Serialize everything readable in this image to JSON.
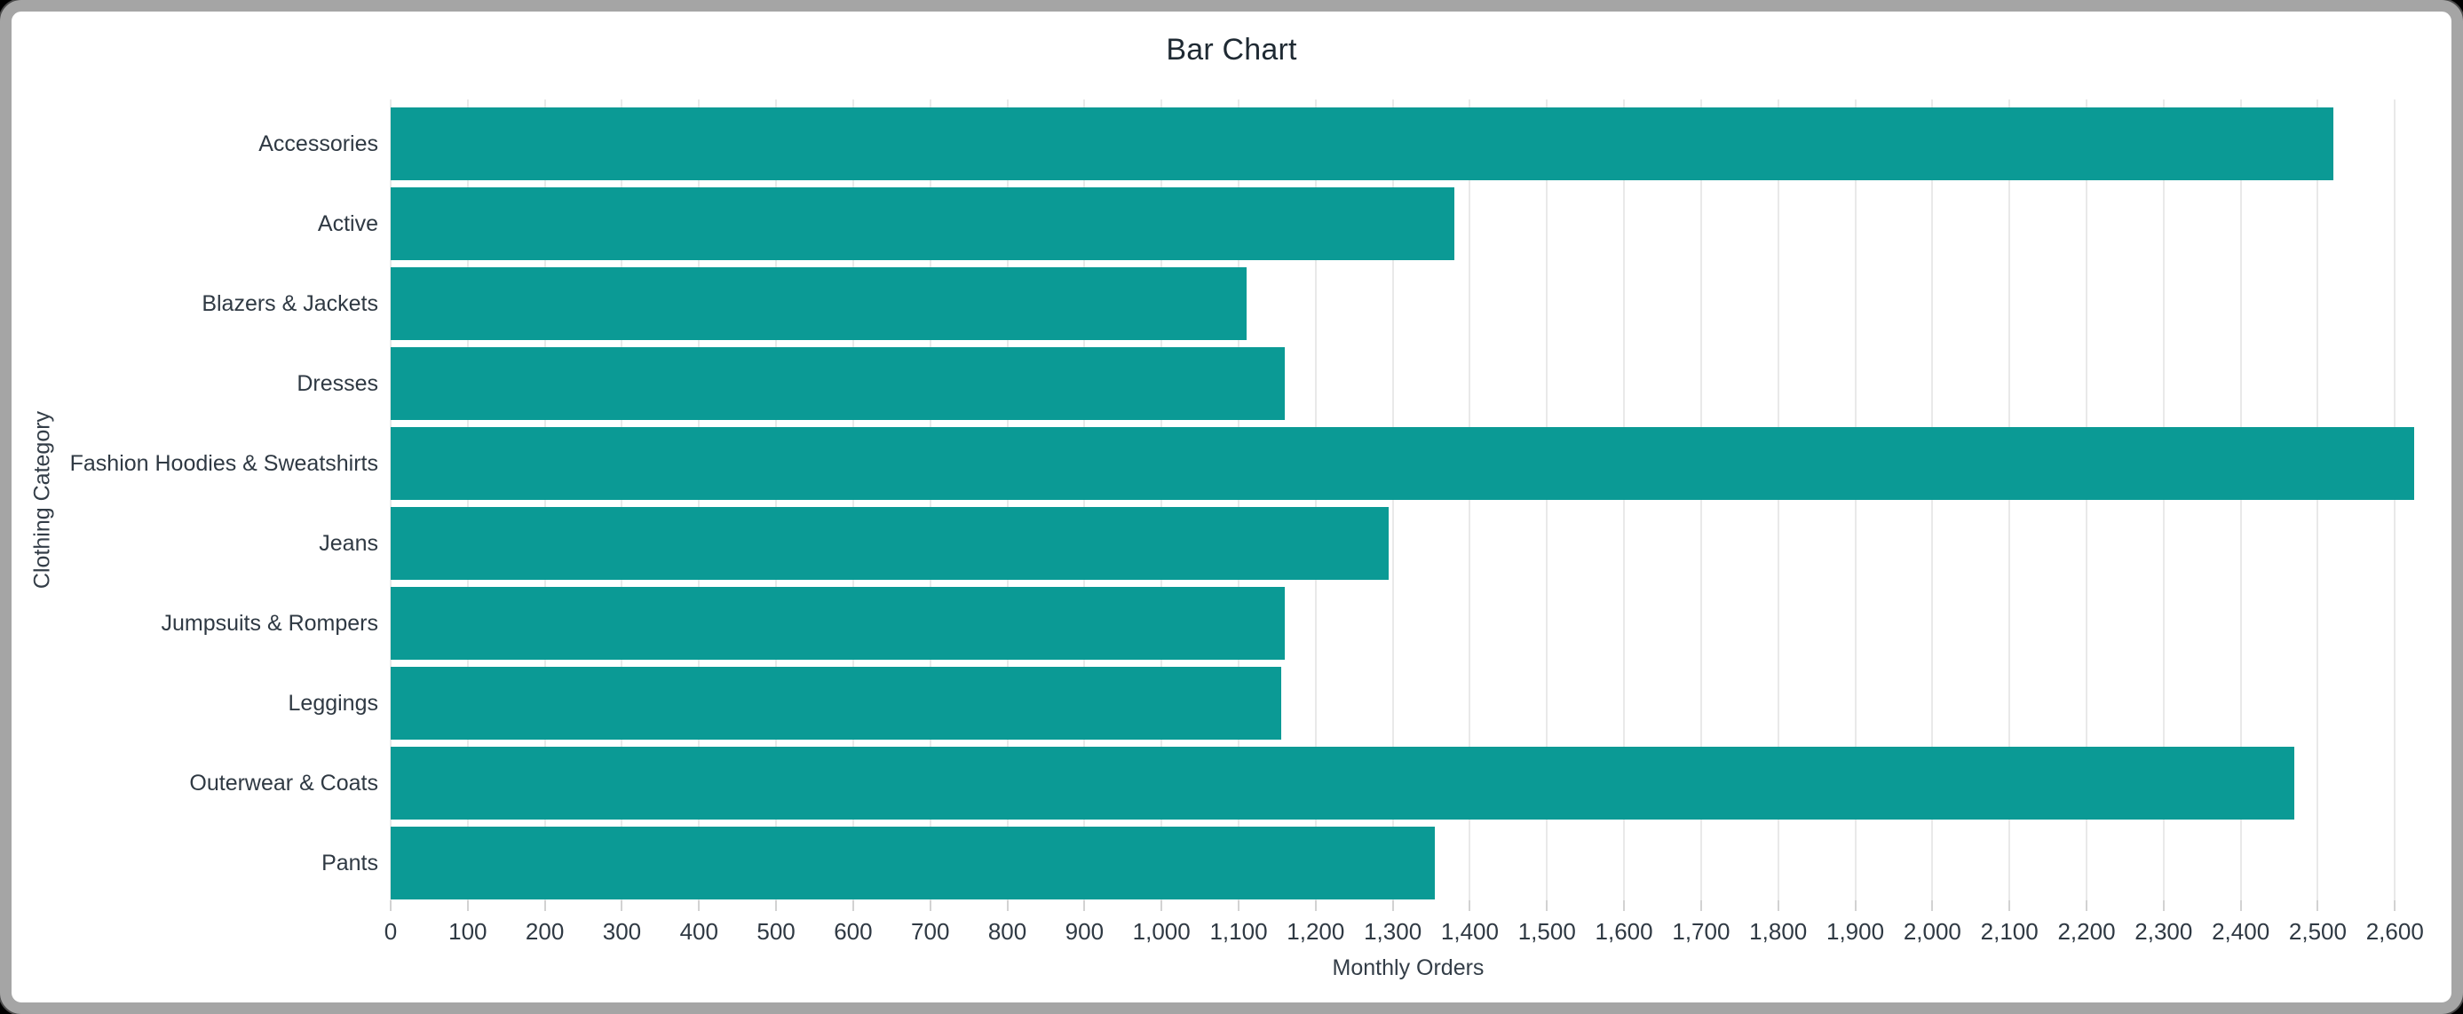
{
  "window": {
    "frame_color": "#a5a5a5",
    "background": "#ffffff"
  },
  "chart_data": {
    "type": "bar",
    "orientation": "horizontal",
    "title": "Bar Chart",
    "xlabel": "Monthly Orders",
    "ylabel": "Clothing Category",
    "categories": [
      "Accessories",
      "Active",
      "Blazers & Jackets",
      "Dresses",
      "Fashion Hoodies & Sweatshirts",
      "Jeans",
      "Jumpsuits & Rompers",
      "Leggings",
      "Outerwear & Coats",
      "Pants"
    ],
    "values": [
      2520,
      1380,
      1110,
      1160,
      2625,
      1295,
      1160,
      1155,
      2470,
      1355
    ],
    "xlim": [
      0,
      2640
    ],
    "xticks": [
      0,
      100,
      200,
      300,
      400,
      500,
      600,
      700,
      800,
      900,
      1000,
      1100,
      1200,
      1300,
      1400,
      1500,
      1600,
      1700,
      1800,
      1900,
      2000,
      2100,
      2200,
      2300,
      2400,
      2500,
      2600
    ],
    "grid": true,
    "legend": false,
    "bar_color": "#0b9a95",
    "grid_color": "#e9e9e9",
    "text_color": "#2f3943"
  }
}
